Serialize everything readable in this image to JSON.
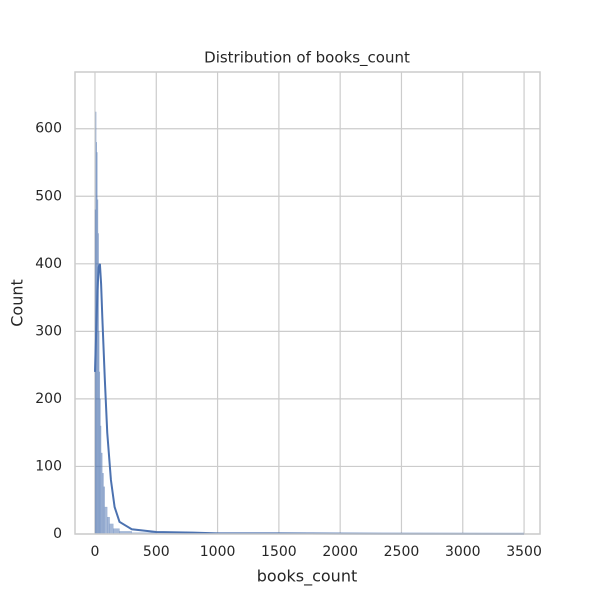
{
  "chart_data": {
    "type": "histogram",
    "title": "Distribution of books_count",
    "x_label": "books_count",
    "y_label": "Count",
    "bins": [
      0,
      5,
      10,
      15,
      20,
      25,
      30,
      35,
      40,
      45,
      50,
      60,
      70,
      80,
      100,
      120,
      150,
      200,
      300,
      500,
      1000,
      1500,
      2000,
      3500
    ],
    "counts": [
      480,
      625,
      580,
      565,
      495,
      445,
      300,
      240,
      200,
      160,
      120,
      90,
      70,
      40,
      25,
      15,
      8,
      4,
      2,
      1,
      1,
      1,
      0
    ],
    "color": "#4c72b0",
    "kde": {
      "x": [
        0,
        10,
        20,
        30,
        40,
        50,
        60,
        80,
        100,
        130,
        160,
        200,
        300,
        500,
        800,
        1000,
        1500,
        2000,
        3500
      ],
      "values": [
        240,
        300,
        360,
        395,
        400,
        370,
        320,
        230,
        150,
        80,
        40,
        18,
        7,
        3,
        2,
        1,
        1,
        0.5,
        0.2
      ],
      "color": "#4c72b0"
    },
    "xlim": [
      -163,
      3630
    ],
    "ylim": [
      0,
      684
    ],
    "xticks": [
      0,
      500,
      1000,
      1500,
      2000,
      2500,
      3000,
      3500
    ],
    "yticks": [
      0,
      100,
      200,
      300,
      400,
      500,
      600
    ],
    "grid": true
  }
}
